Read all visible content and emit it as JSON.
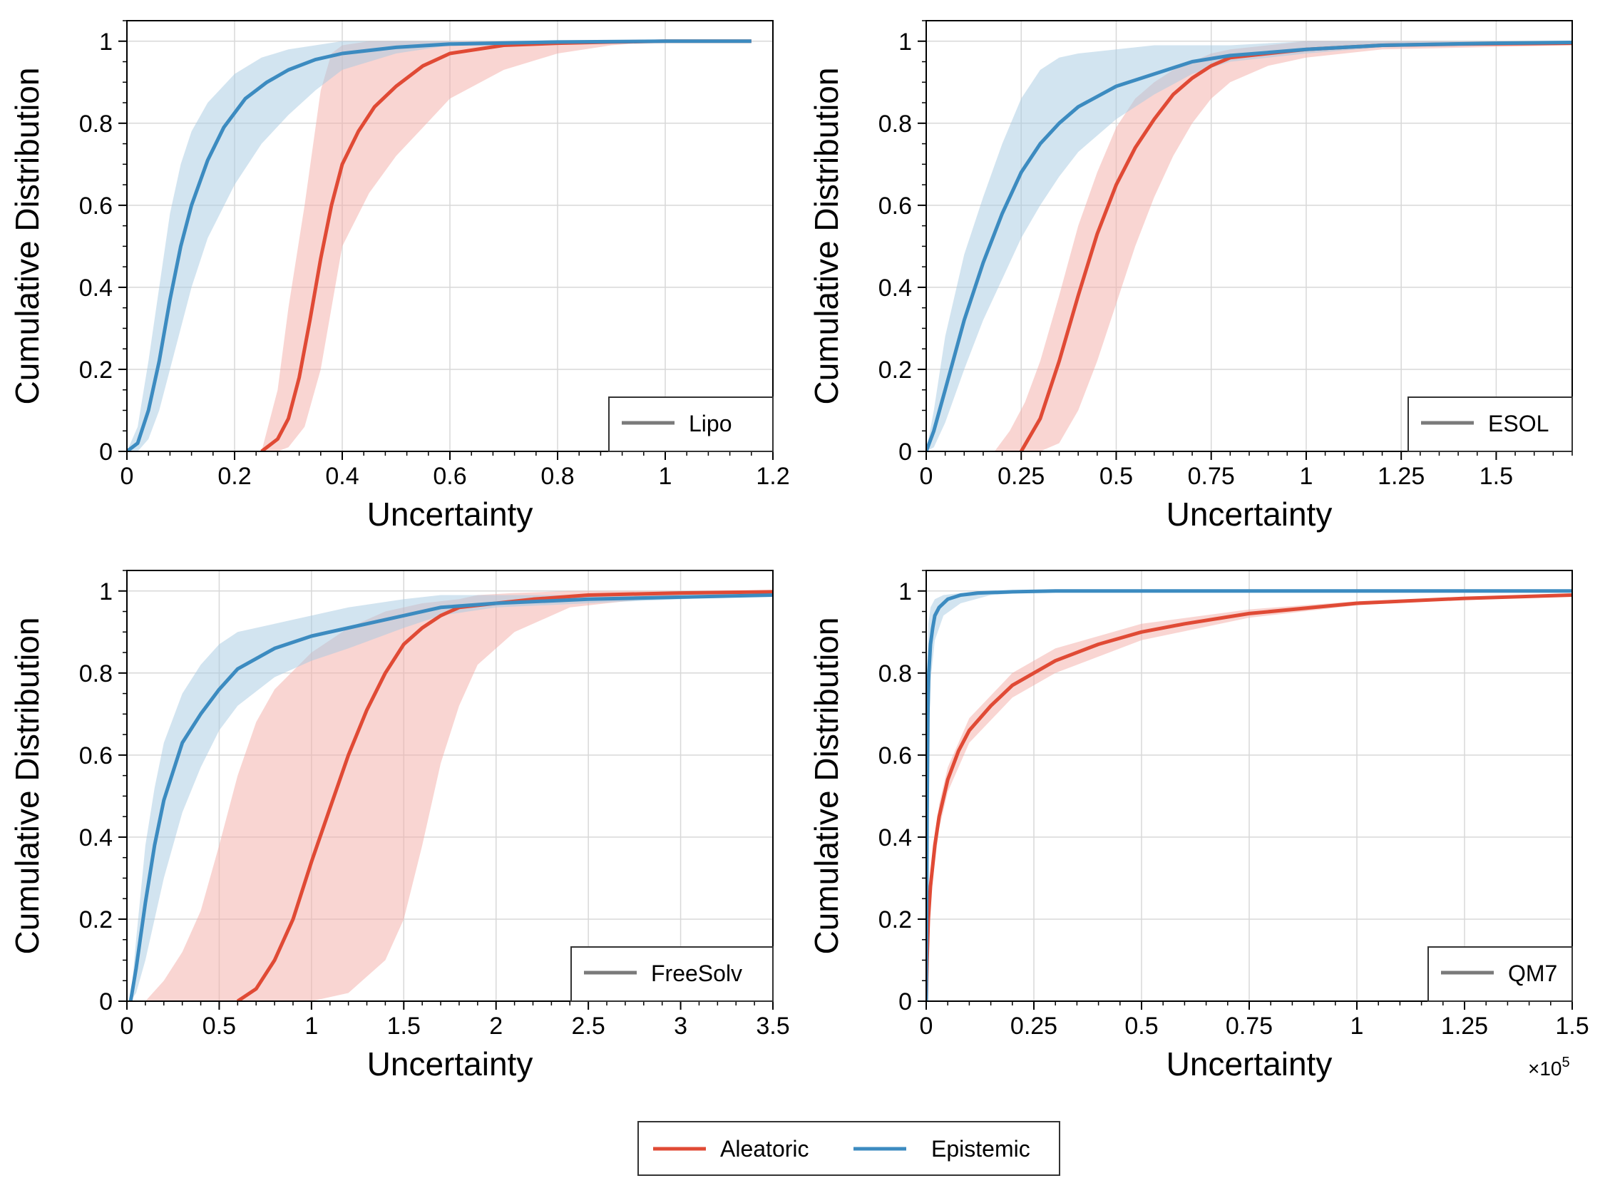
{
  "colors": {
    "aleatoric": "#e04a35",
    "epistemic": "#3c8bc0",
    "aleatoric_band": "#f4aca6",
    "epistemic_band": "#a6cae2",
    "legend_line": "#7a7a7a"
  },
  "legend": {
    "items": [
      {
        "label": "Aleatoric",
        "color": "#e04a35"
      },
      {
        "label": "Epistemic",
        "color": "#3c8bc0"
      }
    ]
  },
  "chart_data": [
    {
      "type": "line",
      "xlabel": "Uncertainty",
      "ylabel": "Cumulative Distribution",
      "xlim": [
        0,
        1.2
      ],
      "ylim": [
        0,
        1.05
      ],
      "xticks": [
        0,
        0.2,
        0.4,
        0.6,
        0.8,
        1,
        1.2
      ],
      "xtick_labels": [
        "0",
        "0.2",
        "0.4",
        "0.6",
        "0.8",
        "1",
        "1.2"
      ],
      "yticks": [
        0,
        0.2,
        0.4,
        0.6,
        0.8,
        1
      ],
      "ytick_labels": [
        "0",
        "0.2",
        "0.4",
        "0.6",
        "0.8",
        "1"
      ],
      "x_multiplier_label": "",
      "legend_label": "Lipo",
      "legend_position": "lower-right",
      "grid": true,
      "series": [
        {
          "name": "Aleatoric",
          "x": [
            0.25,
            0.28,
            0.3,
            0.32,
            0.34,
            0.36,
            0.38,
            0.4,
            0.43,
            0.46,
            0.5,
            0.55,
            0.6,
            0.7,
            0.8,
            0.9,
            1.0,
            1.16
          ],
          "y": [
            0,
            0.03,
            0.08,
            0.18,
            0.32,
            0.47,
            0.6,
            0.7,
            0.78,
            0.84,
            0.89,
            0.94,
            0.97,
            0.99,
            0.995,
            0.998,
            1,
            1
          ],
          "band_x": [
            0.25,
            0.28,
            0.3,
            0.33,
            0.36,
            0.38,
            0.4,
            0.45,
            0.5,
            0.55,
            0.6,
            0.7,
            0.8,
            0.9,
            1.0,
            1.16
          ],
          "band_lo": [
            0,
            0,
            0.01,
            0.06,
            0.2,
            0.35,
            0.5,
            0.63,
            0.72,
            0.79,
            0.86,
            0.93,
            0.97,
            0.99,
            1,
            1
          ],
          "band_hi": [
            0,
            0.15,
            0.35,
            0.6,
            0.88,
            0.97,
            0.99,
            1,
            1,
            1,
            1,
            1,
            1,
            1,
            1,
            1
          ]
        },
        {
          "name": "Epistemic",
          "x": [
            0,
            0.02,
            0.04,
            0.06,
            0.08,
            0.1,
            0.12,
            0.15,
            0.18,
            0.22,
            0.26,
            0.3,
            0.35,
            0.4,
            0.5,
            0.6,
            0.8,
            1.0,
            1.16
          ],
          "y": [
            0,
            0.02,
            0.1,
            0.22,
            0.37,
            0.5,
            0.6,
            0.71,
            0.79,
            0.86,
            0.9,
            0.93,
            0.955,
            0.97,
            0.985,
            0.993,
            0.998,
            1,
            1
          ],
          "band_x": [
            0,
            0.02,
            0.04,
            0.06,
            0.08,
            0.1,
            0.12,
            0.15,
            0.2,
            0.25,
            0.3,
            0.35,
            0.4,
            0.5,
            0.6,
            0.8,
            1.16
          ],
          "band_lo": [
            0,
            0,
            0.03,
            0.1,
            0.2,
            0.3,
            0.4,
            0.52,
            0.65,
            0.75,
            0.82,
            0.88,
            0.93,
            0.97,
            0.99,
            1,
            1
          ],
          "band_hi": [
            0,
            0.06,
            0.22,
            0.4,
            0.58,
            0.7,
            0.78,
            0.85,
            0.92,
            0.96,
            0.98,
            0.99,
            1,
            1,
            1,
            1,
            1
          ]
        }
      ]
    },
    {
      "type": "line",
      "xlabel": "Uncertainty",
      "ylabel": "Cumulative Distribution",
      "xlim": [
        0,
        1.7
      ],
      "ylim": [
        0,
        1.05
      ],
      "xticks": [
        0,
        0.25,
        0.5,
        0.75,
        1,
        1.25,
        1.5
      ],
      "xtick_labels": [
        "0",
        "0.25",
        "0.5",
        "0.75",
        "1",
        "1.25",
        "1.5"
      ],
      "yticks": [
        0,
        0.2,
        0.4,
        0.6,
        0.8,
        1
      ],
      "ytick_labels": [
        "0",
        "0.2",
        "0.4",
        "0.6",
        "0.8",
        "1"
      ],
      "x_multiplier_label": "",
      "legend_label": "ESOL",
      "legend_position": "lower-right",
      "grid": true,
      "series": [
        {
          "name": "Aleatoric",
          "x": [
            0.25,
            0.3,
            0.35,
            0.4,
            0.45,
            0.5,
            0.55,
            0.6,
            0.65,
            0.7,
            0.75,
            0.8,
            0.9,
            1.0,
            1.2,
            1.4,
            1.7
          ],
          "y": [
            0,
            0.08,
            0.22,
            0.38,
            0.53,
            0.65,
            0.74,
            0.81,
            0.87,
            0.91,
            0.94,
            0.96,
            0.97,
            0.98,
            0.99,
            0.993,
            0.995
          ],
          "band_x": [
            0.18,
            0.22,
            0.26,
            0.3,
            0.35,
            0.4,
            0.45,
            0.5,
            0.55,
            0.6,
            0.65,
            0.7,
            0.75,
            0.8,
            0.9,
            1.0,
            1.2,
            1.7
          ],
          "band_lo": [
            0,
            0,
            0,
            0,
            0.02,
            0.1,
            0.22,
            0.36,
            0.5,
            0.62,
            0.72,
            0.8,
            0.86,
            0.9,
            0.94,
            0.96,
            0.98,
            0.99
          ],
          "band_hi": [
            0,
            0.05,
            0.12,
            0.22,
            0.38,
            0.55,
            0.68,
            0.79,
            0.86,
            0.9,
            0.93,
            0.95,
            0.97,
            0.98,
            0.99,
            1,
            1,
            1
          ]
        },
        {
          "name": "Epistemic",
          "x": [
            0,
            0.02,
            0.05,
            0.1,
            0.15,
            0.2,
            0.25,
            0.3,
            0.35,
            0.4,
            0.5,
            0.6,
            0.7,
            0.8,
            1.0,
            1.2,
            1.5,
            1.7
          ],
          "y": [
            0,
            0.05,
            0.15,
            0.32,
            0.46,
            0.58,
            0.68,
            0.75,
            0.8,
            0.84,
            0.89,
            0.92,
            0.95,
            0.965,
            0.98,
            0.99,
            0.995,
            0.997
          ],
          "band_x": [
            0,
            0.02,
            0.05,
            0.1,
            0.15,
            0.2,
            0.25,
            0.3,
            0.35,
            0.4,
            0.5,
            0.6,
            0.7,
            0.8,
            1.0,
            1.2,
            1.5,
            1.7
          ],
          "band_lo": [
            0,
            0.01,
            0.07,
            0.2,
            0.32,
            0.42,
            0.52,
            0.6,
            0.67,
            0.73,
            0.81,
            0.87,
            0.92,
            0.95,
            0.97,
            0.985,
            0.99,
            0.995
          ],
          "band_hi": [
            0,
            0.1,
            0.28,
            0.48,
            0.62,
            0.75,
            0.86,
            0.93,
            0.96,
            0.97,
            0.98,
            0.99,
            0.99,
            0.99,
            1,
            1,
            1,
            1
          ]
        }
      ]
    },
    {
      "type": "line",
      "xlabel": "Uncertainty",
      "ylabel": "Cumulative Distribution",
      "xlim": [
        0,
        3.5
      ],
      "ylim": [
        0,
        1.05
      ],
      "xticks": [
        0,
        0.5,
        1,
        1.5,
        2,
        2.5,
        3,
        3.5
      ],
      "xtick_labels": [
        "0",
        "0.5",
        "1",
        "1.5",
        "2",
        "2.5",
        "3",
        "3.5"
      ],
      "yticks": [
        0,
        0.2,
        0.4,
        0.6,
        0.8,
        1
      ],
      "ytick_labels": [
        "0",
        "0.2",
        "0.4",
        "0.6",
        "0.8",
        "1"
      ],
      "x_multiplier_label": "",
      "legend_label": "FreeSolv",
      "legend_position": "lower-right",
      "grid": true,
      "series": [
        {
          "name": "Aleatoric",
          "x": [
            0.6,
            0.7,
            0.8,
            0.9,
            1.0,
            1.1,
            1.2,
            1.3,
            1.4,
            1.5,
            1.6,
            1.7,
            1.8,
            2.0,
            2.2,
            2.5,
            3.0,
            3.5
          ],
          "y": [
            0,
            0.03,
            0.1,
            0.2,
            0.34,
            0.47,
            0.6,
            0.71,
            0.8,
            0.87,
            0.91,
            0.94,
            0.96,
            0.97,
            0.98,
            0.99,
            0.995,
            0.998
          ],
          "band_x": [
            0.1,
            0.2,
            0.3,
            0.4,
            0.5,
            0.6,
            0.7,
            0.8,
            1.0,
            1.2,
            1.4,
            1.5,
            1.6,
            1.7,
            1.8,
            1.9,
            2.1,
            2.4,
            3.0,
            3.5
          ],
          "band_lo": [
            0,
            0,
            0,
            0,
            0,
            0,
            0,
            0,
            0,
            0.02,
            0.1,
            0.2,
            0.38,
            0.58,
            0.72,
            0.82,
            0.9,
            0.96,
            0.99,
            1
          ],
          "band_hi": [
            0,
            0.05,
            0.12,
            0.22,
            0.38,
            0.55,
            0.68,
            0.76,
            0.85,
            0.91,
            0.95,
            0.96,
            0.97,
            0.975,
            0.98,
            0.99,
            0.995,
            1,
            1,
            1
          ]
        },
        {
          "name": "Epistemic",
          "x": [
            0.02,
            0.05,
            0.1,
            0.15,
            0.2,
            0.3,
            0.4,
            0.5,
            0.6,
            0.8,
            1.0,
            1.2,
            1.5,
            1.7,
            2.0,
            2.5,
            3.0,
            3.5
          ],
          "y": [
            0,
            0.08,
            0.24,
            0.38,
            0.49,
            0.63,
            0.7,
            0.76,
            0.81,
            0.86,
            0.89,
            0.91,
            0.94,
            0.96,
            0.97,
            0.98,
            0.985,
            0.99
          ],
          "band_x": [
            0.02,
            0.05,
            0.1,
            0.15,
            0.2,
            0.3,
            0.4,
            0.5,
            0.6,
            0.8,
            1.0,
            1.2,
            1.5,
            1.7,
            2.0,
            2.5,
            3.0,
            3.5
          ],
          "band_lo": [
            0,
            0.02,
            0.1,
            0.2,
            0.3,
            0.46,
            0.57,
            0.66,
            0.72,
            0.79,
            0.83,
            0.86,
            0.91,
            0.94,
            0.96,
            0.97,
            0.98,
            0.99
          ],
          "band_hi": [
            0,
            0.15,
            0.38,
            0.52,
            0.63,
            0.75,
            0.82,
            0.87,
            0.9,
            0.92,
            0.94,
            0.96,
            0.98,
            0.99,
            0.99,
            0.99,
            1,
            1
          ]
        }
      ]
    },
    {
      "type": "line",
      "xlabel": "Uncertainty",
      "ylabel": "Cumulative Distribution",
      "xlim": [
        0,
        1.5
      ],
      "ylim": [
        0,
        1.05
      ],
      "xticks": [
        0,
        0.25,
        0.5,
        0.75,
        1,
        1.25,
        1.5
      ],
      "xtick_labels": [
        "0",
        "0.25",
        "0.5",
        "0.75",
        "1",
        "1.25",
        "1.5"
      ],
      "yticks": [
        0,
        0.2,
        0.4,
        0.6,
        0.8,
        1
      ],
      "ytick_labels": [
        "0",
        "0.2",
        "0.4",
        "0.6",
        "0.8",
        "1"
      ],
      "x_multiplier_label": "×10",
      "x_multiplier_exponent": "5",
      "legend_label": "QM7",
      "legend_position": "lower-right",
      "grid": true,
      "series": [
        {
          "name": "Aleatoric",
          "x": [
            0,
            0.002,
            0.005,
            0.01,
            0.02,
            0.03,
            0.05,
            0.075,
            0.1,
            0.15,
            0.2,
            0.25,
            0.3,
            0.4,
            0.5,
            0.6,
            0.75,
            0.9,
            1.0,
            1.25,
            1.5
          ],
          "y": [
            0,
            0.1,
            0.2,
            0.28,
            0.38,
            0.45,
            0.54,
            0.61,
            0.66,
            0.72,
            0.77,
            0.8,
            0.83,
            0.87,
            0.9,
            0.92,
            0.945,
            0.96,
            0.97,
            0.982,
            0.99
          ],
          "band_x": [
            0,
            0.01,
            0.03,
            0.05,
            0.1,
            0.2,
            0.3,
            0.5,
            0.75,
            1.0,
            1.25,
            1.5
          ],
          "band_lo": [
            0,
            0.25,
            0.42,
            0.51,
            0.63,
            0.74,
            0.8,
            0.88,
            0.935,
            0.965,
            0.98,
            0.99
          ],
          "band_hi": [
            0,
            0.31,
            0.48,
            0.57,
            0.69,
            0.8,
            0.86,
            0.92,
            0.955,
            0.975,
            0.985,
            0.992
          ]
        },
        {
          "name": "Epistemic",
          "x": [
            0,
            0.002,
            0.004,
            0.006,
            0.01,
            0.015,
            0.02,
            0.03,
            0.05,
            0.08,
            0.12,
            0.2,
            0.3,
            0.5,
            1.0,
            1.5
          ],
          "y": [
            0,
            0.45,
            0.7,
            0.8,
            0.87,
            0.91,
            0.94,
            0.96,
            0.98,
            0.99,
            0.995,
            0.998,
            1,
            1,
            1,
            1
          ],
          "band_x": [
            0,
            0.002,
            0.005,
            0.01,
            0.02,
            0.04,
            0.08,
            0.15,
            0.3,
            1.5
          ],
          "band_lo": [
            0,
            0.3,
            0.6,
            0.78,
            0.88,
            0.94,
            0.97,
            0.99,
            1,
            1
          ],
          "band_hi": [
            0,
            0.8,
            0.92,
            0.96,
            0.98,
            0.99,
            0.995,
            1,
            1,
            1
          ]
        }
      ]
    }
  ]
}
